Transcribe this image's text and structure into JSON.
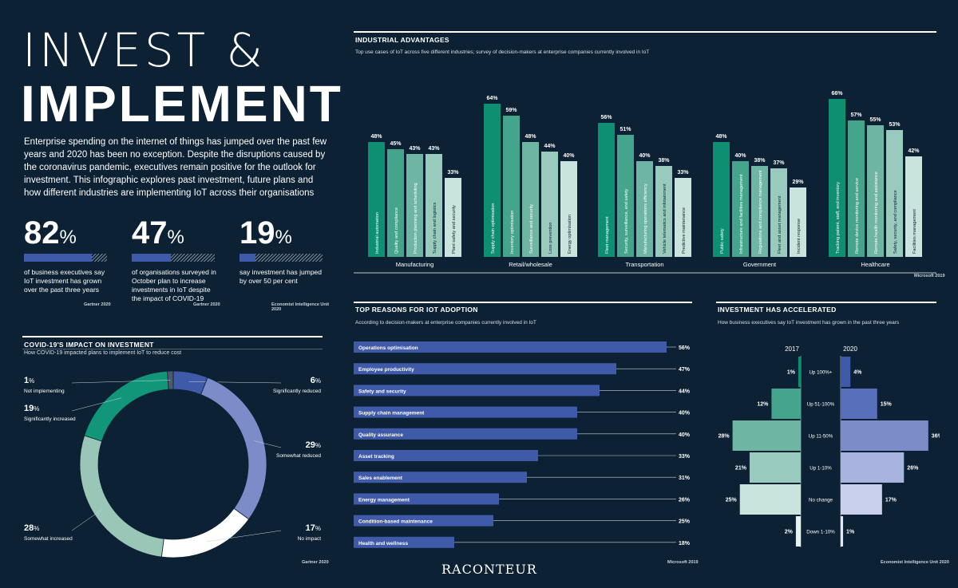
{
  "header": {
    "title_line1": "INVEST &",
    "title_line2": "IMPLEMENT",
    "intro": "Enterprise spending on the internet of things has jumped over the past few years and 2020 has been no exception. Despite the disruptions caused by the coronavirus pandemic, executives remain positive for the outlook for investment. This infographic explores past investment, future plans and how different industries are implementing IoT across their organisations"
  },
  "stats": [
    {
      "value": "82",
      "pct": "%",
      "fraction": 0.82,
      "text": "of business executives say IoT investment has grown over the past three years",
      "source": "Gartner 2020"
    },
    {
      "value": "47",
      "pct": "%",
      "fraction": 0.47,
      "text": "of organisations surveyed in October plan to increase investments in IoT despite the impact of COVID-19",
      "source": "Gartner 2020"
    },
    {
      "value": "19",
      "pct": "%",
      "fraction": 0.19,
      "text": "say investment has jumped by over 50 per cent",
      "source": "Economist Intelligence Unit 2020"
    }
  ],
  "colors": {
    "background": "#0c2133",
    "stat_bar": "#3f5aa8",
    "hbar": "#3f5aa8",
    "industry_greens": [
      "#0e8f72",
      "#45a48c",
      "#6fb5a4",
      "#98cbbd",
      "#c9e4dc"
    ],
    "donut": [
      "#3f5aa8",
      "#7c8cc9",
      "#ffffff",
      "#9ac6b7",
      "#12967a",
      "#3a4a5a"
    ],
    "inv_2017": [
      "#0e8f72",
      "#45a48c",
      "#6fb5a4",
      "#98cbbd",
      "#c9e4dc",
      "#e6f2ee"
    ],
    "inv_2020": [
      "#3f5aa8",
      "#5870bb",
      "#7c8cc9",
      "#a8b3df",
      "#c9d0ee",
      "#e3e7f7"
    ]
  },
  "chart_data": [
    {
      "type": "bar",
      "id": "industrial",
      "title": "INDUSTRIAL ADVANTAGES",
      "subtitle": "Top use cases of IoT across five different industries; survey of decision-makers at enterprise companies currently involved in IoT",
      "source": "Microsoft 2019",
      "groups": [
        {
          "name": "Manufacturing",
          "bars": [
            {
              "label": "Industrial automation",
              "value": 48
            },
            {
              "label": "Quality and compliance",
              "value": 45
            },
            {
              "label": "Production planning and scheduling",
              "value": 43
            },
            {
              "label": "Supply chain and logistics",
              "value": 43
            },
            {
              "label": "Plant safety and security",
              "value": 33
            }
          ]
        },
        {
          "name": "Retail/wholesale",
          "bars": [
            {
              "label": "Supply chain optimisation",
              "value": 64
            },
            {
              "label": "Inventory optimisation",
              "value": 59
            },
            {
              "label": "Surveillance and security",
              "value": 48
            },
            {
              "label": "Loss prevention",
              "value": 44
            },
            {
              "label": "Energy optimisation",
              "value": 40
            }
          ]
        },
        {
          "name": "Transportation",
          "bars": [
            {
              "label": "Fleet management",
              "value": 56
            },
            {
              "label": "Security, surveillance, and safety",
              "value": 51
            },
            {
              "label": "Manufacturing operations efficiency",
              "value": 40
            },
            {
              "label": "Vehicle telematics and infotainment",
              "value": 38
            },
            {
              "label": "Predictive maintenance",
              "value": 33
            }
          ]
        },
        {
          "name": "Government",
          "bars": [
            {
              "label": "Public safety",
              "value": 48
            },
            {
              "label": "Infrastructure and facilities management",
              "value": 40
            },
            {
              "label": "Regulations and compliance management",
              "value": 38
            },
            {
              "label": "Fleet and asset management",
              "value": 37
            },
            {
              "label": "Incident response",
              "value": 29
            }
          ]
        },
        {
          "name": "Healthcare",
          "bars": [
            {
              "label": "Tracking patient, staff, and inventory",
              "value": 66
            },
            {
              "label": "Remote device monitoring and service",
              "value": 57
            },
            {
              "label": "Remote health monitoring and assistance",
              "value": 55
            },
            {
              "label": "Safety, security, and compliance",
              "value": 53
            },
            {
              "label": "Facilities management",
              "value": 42
            }
          ]
        }
      ]
    },
    {
      "type": "bar",
      "id": "adoption",
      "title": "TOP REASONS FOR IOT ADOPTION",
      "subtitle": "According to decision-makers at enterprise companies currently involved in IoT",
      "source": "Microsoft 2019",
      "categories": [
        "Operations optimisation",
        "Employee productivity",
        "Safety and security",
        "Supply chain management",
        "Quality assurance",
        "Asset tracking",
        "Sales enablement",
        "Energy management",
        "Condition-based maintenance",
        "Health and wellness"
      ],
      "values": [
        56,
        47,
        44,
        40,
        40,
        33,
        31,
        26,
        25,
        18
      ],
      "xlim": [
        0,
        56
      ]
    },
    {
      "type": "bar",
      "id": "accelerated",
      "title": "INVESTMENT HAS ACCELERATED",
      "subtitle": "How business executives say IoT investment has grown in the past three years",
      "source": "Economist Intelligence Unit 2020",
      "categories": [
        "Up 100%+",
        "Up 51-100%",
        "Up 11-50%",
        "Up 1-10%",
        "No change",
        "Down 1-10%"
      ],
      "series": [
        {
          "name": "2017",
          "values": [
            1,
            12,
            28,
            21,
            25,
            2
          ]
        },
        {
          "name": "2020",
          "values": [
            4,
            15,
            36,
            26,
            17,
            1
          ]
        }
      ]
    },
    {
      "type": "pie",
      "id": "covid",
      "title": "COVID-19'S IMPACT ON INVESTMENT",
      "subtitle": "How COVID-19 impacted plans to implement IoT to reduce cost",
      "source": "Gartner 2020",
      "categories": [
        "Significantly reduced",
        "Somewhat reduced",
        "No impact",
        "Somewhat increased",
        "Significantly increased",
        "Not implementing"
      ],
      "values": [
        6,
        29,
        17,
        28,
        19,
        1
      ]
    }
  ],
  "footer": {
    "brand": "RACONTEUR"
  }
}
